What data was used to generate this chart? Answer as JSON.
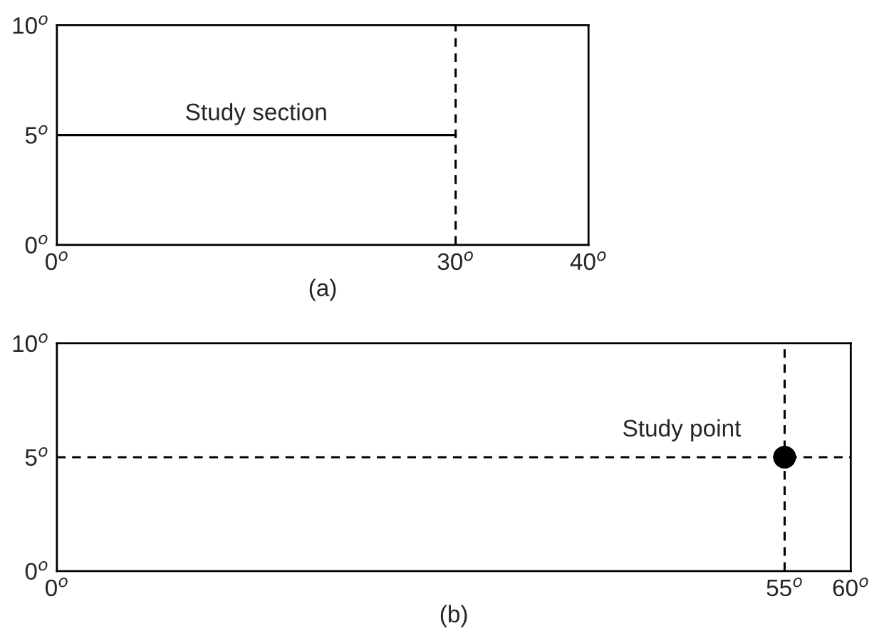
{
  "chart_data": [
    {
      "type": "line",
      "xlabel": "(a)",
      "x": [
        0,
        30
      ],
      "series": [
        {
          "type": "line",
          "color": "#000000",
          "line_style": "solid",
          "values": [
            5,
            5
          ]
        }
      ],
      "xlim": [
        0,
        40
      ],
      "ylim": [
        0,
        10
      ],
      "xticks": [
        {
          "value": 0,
          "label": "0$^{o}$"
        },
        {
          "value": 30,
          "label": "30$^{o}$"
        },
        {
          "value": 40,
          "label": "40$^{o}$"
        }
      ],
      "yticks": [
        {
          "value": 0,
          "label": "0$^{o}$"
        },
        {
          "value": 5,
          "label": "5$^{o}$"
        },
        {
          "value": 10,
          "label": "10$^{o}$"
        }
      ],
      "ref_lines": [
        {
          "axis": "x",
          "value": 30,
          "color": "#000000",
          "line_style": "dashed"
        }
      ],
      "annotations": [
        {
          "text": "Study section",
          "x": 15,
          "y": 5
        }
      ],
      "grid": false,
      "legend": false
    },
    {
      "type": "scatter",
      "xlabel": "(b)",
      "x": [
        55
      ],
      "series": [
        {
          "type": "scatter",
          "color": "#000000",
          "marker": "circle",
          "values": [
            5
          ]
        }
      ],
      "xlim": [
        0,
        60
      ],
      "ylim": [
        0,
        10
      ],
      "xticks": [
        {
          "value": 0,
          "label": "0$^{o}$"
        },
        {
          "value": 55,
          "label": "55$^{o}$"
        },
        {
          "value": 60,
          "label": "60$^{o}$"
        }
      ],
      "yticks": [
        {
          "value": 0,
          "label": "0$^{o}$"
        },
        {
          "value": 5,
          "label": "5$^{o}$"
        },
        {
          "value": 10,
          "label": "10$^{o}$"
        }
      ],
      "ref_lines": [
        {
          "axis": "x",
          "value": 55,
          "color": "#000000",
          "line_style": "dashed"
        },
        {
          "axis": "y",
          "value": 5,
          "color": "#000000",
          "line_style": "dashed"
        }
      ],
      "annotations": [
        {
          "text": "Study point",
          "x": 55,
          "y": 5
        }
      ],
      "grid": false,
      "legend": false
    }
  ]
}
